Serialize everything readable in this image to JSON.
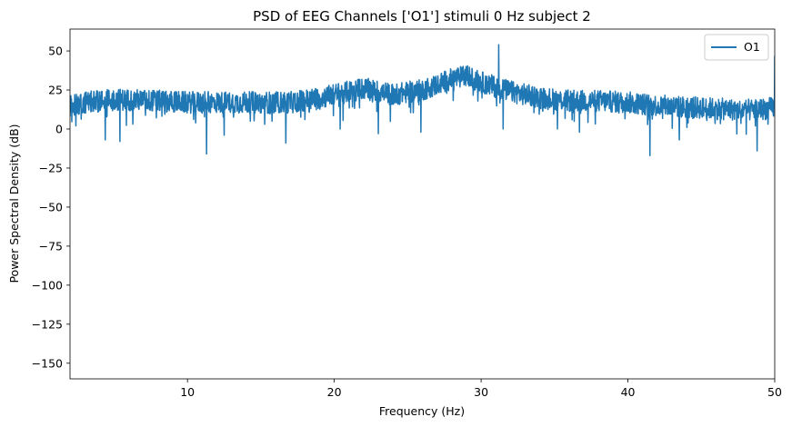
{
  "chart_data": {
    "type": "line",
    "title": "PSD of EEG Channels ['O1'] stimuli 0 Hz subject 2",
    "xlabel": "Frequency (Hz)",
    "ylabel": "Power Spectral Density (dB)",
    "xlim": [
      2,
      50
    ],
    "ylim": [
      -160,
      64
    ],
    "xticks": [
      10,
      20,
      30,
      40,
      50
    ],
    "yticks": [
      50,
      25,
      0,
      -25,
      -50,
      -75,
      -100,
      -125,
      -150
    ],
    "grid": false,
    "legend": {
      "position": "top-right",
      "entries": [
        "O1"
      ]
    },
    "series": [
      {
        "name": "O1",
        "color": "#1f77b4",
        "profile": {
          "x": [
            2,
            3,
            5,
            8,
            10,
            12,
            15,
            17,
            19,
            20,
            22,
            24,
            26,
            28,
            29,
            30,
            31,
            32,
            34,
            36,
            38,
            40,
            42,
            44,
            46,
            48,
            49.5,
            50
          ],
          "y": [
            15,
            17,
            19,
            18,
            17,
            17,
            17,
            17,
            20,
            22,
            26,
            22,
            25,
            32,
            34,
            30,
            27,
            24,
            20,
            18,
            18,
            17,
            15,
            14,
            13,
            12,
            13,
            14
          ]
        },
        "peaks": [
          {
            "x": 31.2,
            "y": 54
          },
          {
            "x": 50,
            "y": 47
          }
        ],
        "dips": [
          {
            "x": 2.4,
            "y": 2
          },
          {
            "x": 4.4,
            "y": -7
          },
          {
            "x": 5.4,
            "y": -8
          },
          {
            "x": 11.3,
            "y": -16
          },
          {
            "x": 12.5,
            "y": -4
          },
          {
            "x": 16.7,
            "y": -9
          },
          {
            "x": 20.4,
            "y": 0
          },
          {
            "x": 23.0,
            "y": -3
          },
          {
            "x": 25.9,
            "y": -2
          },
          {
            "x": 31.5,
            "y": 0
          },
          {
            "x": 35.2,
            "y": 0
          },
          {
            "x": 36.7,
            "y": -2
          },
          {
            "x": 41.5,
            "y": -17
          },
          {
            "x": 43.5,
            "y": -7
          },
          {
            "x": 48.8,
            "y": -14
          }
        ]
      }
    ]
  }
}
